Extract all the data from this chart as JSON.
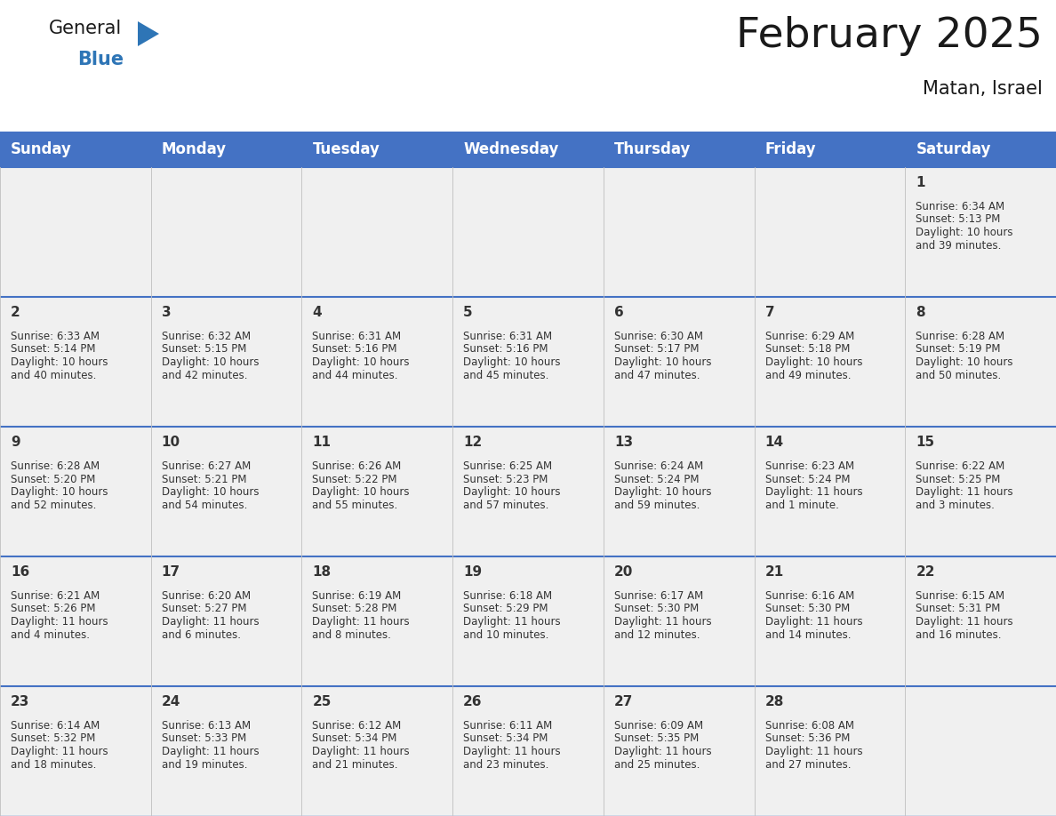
{
  "title": "February 2025",
  "subtitle": "Matan, Israel",
  "header_color": "#4472C4",
  "header_text_color": "#FFFFFF",
  "bg_color": "#FFFFFF",
  "cell_bg_color": "#F0F0F0",
  "line_color": "#4472C4",
  "text_color": "#333333",
  "day_headers": [
    "Sunday",
    "Monday",
    "Tuesday",
    "Wednesday",
    "Thursday",
    "Friday",
    "Saturday"
  ],
  "days": [
    {
      "day": 1,
      "col": 6,
      "row": 0,
      "sunrise": "6:34 AM",
      "sunset": "5:13 PM",
      "daylight_h": "10 hours",
      "daylight_m": "and 39 minutes."
    },
    {
      "day": 2,
      "col": 0,
      "row": 1,
      "sunrise": "6:33 AM",
      "sunset": "5:14 PM",
      "daylight_h": "10 hours",
      "daylight_m": "and 40 minutes."
    },
    {
      "day": 3,
      "col": 1,
      "row": 1,
      "sunrise": "6:32 AM",
      "sunset": "5:15 PM",
      "daylight_h": "10 hours",
      "daylight_m": "and 42 minutes."
    },
    {
      "day": 4,
      "col": 2,
      "row": 1,
      "sunrise": "6:31 AM",
      "sunset": "5:16 PM",
      "daylight_h": "10 hours",
      "daylight_m": "and 44 minutes."
    },
    {
      "day": 5,
      "col": 3,
      "row": 1,
      "sunrise": "6:31 AM",
      "sunset": "5:16 PM",
      "daylight_h": "10 hours",
      "daylight_m": "and 45 minutes."
    },
    {
      "day": 6,
      "col": 4,
      "row": 1,
      "sunrise": "6:30 AM",
      "sunset": "5:17 PM",
      "daylight_h": "10 hours",
      "daylight_m": "and 47 minutes."
    },
    {
      "day": 7,
      "col": 5,
      "row": 1,
      "sunrise": "6:29 AM",
      "sunset": "5:18 PM",
      "daylight_h": "10 hours",
      "daylight_m": "and 49 minutes."
    },
    {
      "day": 8,
      "col": 6,
      "row": 1,
      "sunrise": "6:28 AM",
      "sunset": "5:19 PM",
      "daylight_h": "10 hours",
      "daylight_m": "and 50 minutes."
    },
    {
      "day": 9,
      "col": 0,
      "row": 2,
      "sunrise": "6:28 AM",
      "sunset": "5:20 PM",
      "daylight_h": "10 hours",
      "daylight_m": "and 52 minutes."
    },
    {
      "day": 10,
      "col": 1,
      "row": 2,
      "sunrise": "6:27 AM",
      "sunset": "5:21 PM",
      "daylight_h": "10 hours",
      "daylight_m": "and 54 minutes."
    },
    {
      "day": 11,
      "col": 2,
      "row": 2,
      "sunrise": "6:26 AM",
      "sunset": "5:22 PM",
      "daylight_h": "10 hours",
      "daylight_m": "and 55 minutes."
    },
    {
      "day": 12,
      "col": 3,
      "row": 2,
      "sunrise": "6:25 AM",
      "sunset": "5:23 PM",
      "daylight_h": "10 hours",
      "daylight_m": "and 57 minutes."
    },
    {
      "day": 13,
      "col": 4,
      "row": 2,
      "sunrise": "6:24 AM",
      "sunset": "5:24 PM",
      "daylight_h": "10 hours",
      "daylight_m": "and 59 minutes."
    },
    {
      "day": 14,
      "col": 5,
      "row": 2,
      "sunrise": "6:23 AM",
      "sunset": "5:24 PM",
      "daylight_h": "11 hours",
      "daylight_m": "and 1 minute."
    },
    {
      "day": 15,
      "col": 6,
      "row": 2,
      "sunrise": "6:22 AM",
      "sunset": "5:25 PM",
      "daylight_h": "11 hours",
      "daylight_m": "and 3 minutes."
    },
    {
      "day": 16,
      "col": 0,
      "row": 3,
      "sunrise": "6:21 AM",
      "sunset": "5:26 PM",
      "daylight_h": "11 hours",
      "daylight_m": "and 4 minutes."
    },
    {
      "day": 17,
      "col": 1,
      "row": 3,
      "sunrise": "6:20 AM",
      "sunset": "5:27 PM",
      "daylight_h": "11 hours",
      "daylight_m": "and 6 minutes."
    },
    {
      "day": 18,
      "col": 2,
      "row": 3,
      "sunrise": "6:19 AM",
      "sunset": "5:28 PM",
      "daylight_h": "11 hours",
      "daylight_m": "and 8 minutes."
    },
    {
      "day": 19,
      "col": 3,
      "row": 3,
      "sunrise": "6:18 AM",
      "sunset": "5:29 PM",
      "daylight_h": "11 hours",
      "daylight_m": "and 10 minutes."
    },
    {
      "day": 20,
      "col": 4,
      "row": 3,
      "sunrise": "6:17 AM",
      "sunset": "5:30 PM",
      "daylight_h": "11 hours",
      "daylight_m": "and 12 minutes."
    },
    {
      "day": 21,
      "col": 5,
      "row": 3,
      "sunrise": "6:16 AM",
      "sunset": "5:30 PM",
      "daylight_h": "11 hours",
      "daylight_m": "and 14 minutes."
    },
    {
      "day": 22,
      "col": 6,
      "row": 3,
      "sunrise": "6:15 AM",
      "sunset": "5:31 PM",
      "daylight_h": "11 hours",
      "daylight_m": "and 16 minutes."
    },
    {
      "day": 23,
      "col": 0,
      "row": 4,
      "sunrise": "6:14 AM",
      "sunset": "5:32 PM",
      "daylight_h": "11 hours",
      "daylight_m": "and 18 minutes."
    },
    {
      "day": 24,
      "col": 1,
      "row": 4,
      "sunrise": "6:13 AM",
      "sunset": "5:33 PM",
      "daylight_h": "11 hours",
      "daylight_m": "and 19 minutes."
    },
    {
      "day": 25,
      "col": 2,
      "row": 4,
      "sunrise": "6:12 AM",
      "sunset": "5:34 PM",
      "daylight_h": "11 hours",
      "daylight_m": "and 21 minutes."
    },
    {
      "day": 26,
      "col": 3,
      "row": 4,
      "sunrise": "6:11 AM",
      "sunset": "5:34 PM",
      "daylight_h": "11 hours",
      "daylight_m": "and 23 minutes."
    },
    {
      "day": 27,
      "col": 4,
      "row": 4,
      "sunrise": "6:09 AM",
      "sunset": "5:35 PM",
      "daylight_h": "11 hours",
      "daylight_m": "and 25 minutes."
    },
    {
      "day": 28,
      "col": 5,
      "row": 4,
      "sunrise": "6:08 AM",
      "sunset": "5:36 PM",
      "daylight_h": "11 hours",
      "daylight_m": "and 27 minutes."
    }
  ]
}
